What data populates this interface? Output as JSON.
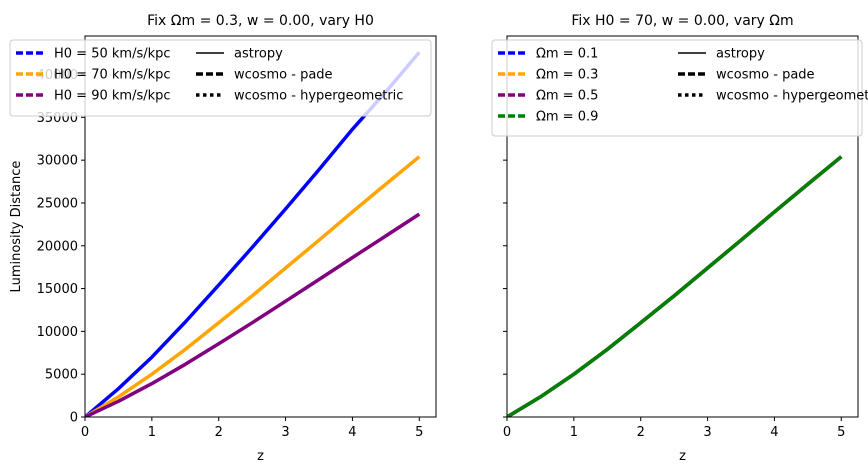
{
  "chart_data": [
    {
      "type": "line",
      "title": "Fix Ωm = 0.3, w = 0.00, vary H0",
      "xlabel": "z",
      "ylabel": "Luminosity Distance",
      "xlim": [
        0,
        5.25
      ],
      "ylim": [
        0,
        44500
      ],
      "xticks": [
        0,
        1,
        2,
        3,
        4,
        5
      ],
      "yticks": [
        0,
        5000,
        10000,
        15000,
        20000,
        25000,
        30000,
        35000,
        40000
      ],
      "legend_position": "top-left",
      "series": [
        {
          "name": "H0 = 50 km/s/kpc",
          "color": "#0000ff",
          "x": [
            0,
            0.5,
            1,
            1.5,
            2,
            2.5,
            3,
            3.5,
            4,
            4.5,
            5
          ],
          "y": [
            0,
            3300,
            7000,
            11100,
            15400,
            19800,
            24300,
            28900,
            33600,
            38000,
            42600
          ]
        },
        {
          "name": "H0 = 70 km/s/kpc",
          "color": "#ffa500",
          "x": [
            0,
            0.5,
            1,
            1.5,
            2,
            2.5,
            3,
            3.5,
            4,
            4.5,
            5
          ],
          "y": [
            0,
            2350,
            5000,
            7900,
            11000,
            14150,
            17400,
            20650,
            23950,
            27200,
            30400
          ]
        },
        {
          "name": "H0 = 90 km/s/kpc",
          "color": "#800080",
          "x": [
            0,
            0.5,
            1,
            1.5,
            2,
            2.5,
            3,
            3.5,
            4,
            4.5,
            5
          ],
          "y": [
            0,
            1830,
            3900,
            6150,
            8560,
            11000,
            13520,
            16060,
            18620,
            21150,
            23700
          ]
        }
      ]
    },
    {
      "type": "line",
      "title": "Fix H0 = 70, w = 0.00, vary Ωm",
      "xlabel": "z",
      "ylabel": "",
      "xlim": [
        0,
        5.25
      ],
      "ylim": [
        0,
        44500
      ],
      "xticks": [
        0,
        1,
        2,
        3,
        4,
        5
      ],
      "yticks": [
        0,
        5000,
        10000,
        15000,
        20000,
        25000,
        30000,
        35000,
        40000
      ],
      "legend_position": "top-left",
      "series": [
        {
          "name": "Ωm = 0.1",
          "color": "#0000ff",
          "x": [
            0,
            0.5,
            1,
            1.5,
            2,
            2.5,
            3,
            3.5,
            4,
            4.5,
            5
          ],
          "y": [
            0,
            2350,
            5000,
            7900,
            11000,
            14150,
            17400,
            20650,
            23950,
            27200,
            30400
          ]
        },
        {
          "name": "Ωm = 0.3",
          "color": "#ffa500",
          "x": [
            0,
            0.5,
            1,
            1.5,
            2,
            2.5,
            3,
            3.5,
            4,
            4.5,
            5
          ],
          "y": [
            0,
            2350,
            5000,
            7900,
            11000,
            14150,
            17400,
            20650,
            23950,
            27200,
            30400
          ]
        },
        {
          "name": "Ωm = 0.5",
          "color": "#800080",
          "x": [
            0,
            0.5,
            1,
            1.5,
            2,
            2.5,
            3,
            3.5,
            4,
            4.5,
            5
          ],
          "y": [
            0,
            2350,
            5000,
            7900,
            11000,
            14150,
            17400,
            20650,
            23950,
            27200,
            30400
          ]
        },
        {
          "name": "Ωm = 0.9",
          "color": "#008000",
          "x": [
            0,
            0.5,
            1,
            1.5,
            2,
            2.5,
            3,
            3.5,
            4,
            4.5,
            5
          ],
          "y": [
            0,
            2350,
            5000,
            7900,
            11000,
            14150,
            17400,
            20650,
            23950,
            27200,
            30400
          ]
        }
      ]
    }
  ],
  "legend_styles": [
    {
      "label": "astropy",
      "dash": "solid"
    },
    {
      "label": "wcosmo - pade",
      "dash": "dashed"
    },
    {
      "label": "wcosmo - hypergeometric",
      "dash": "dotted"
    }
  ]
}
